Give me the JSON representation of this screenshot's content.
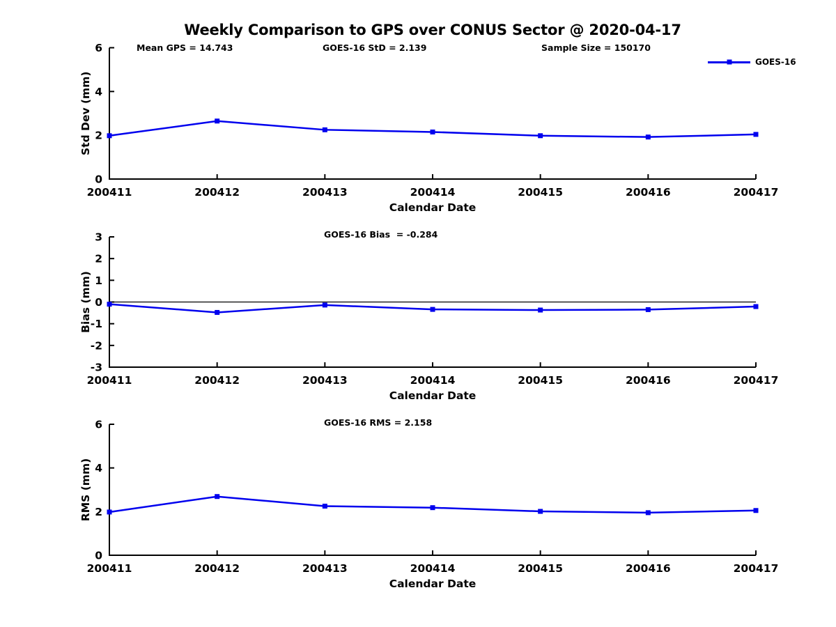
{
  "title": "Weekly Comparison to GPS over CONUS Sector @ 2020-04-17",
  "legend": {
    "label": "GOES-16"
  },
  "colors": {
    "line": "#0000EE",
    "text": "#000000",
    "background": "#FFFFFF"
  },
  "chart_data": [
    {
      "type": "line",
      "categories": [
        "200411",
        "200412",
        "200413",
        "200414",
        "200415",
        "200416",
        "200417"
      ],
      "series": [
        {
          "name": "GOES-16",
          "values": [
            1.98,
            2.65,
            2.25,
            2.15,
            1.98,
            1.92,
            2.04
          ]
        }
      ],
      "annotations": [
        "Mean GPS = 14.743",
        "GOES-16 StD = 2.139",
        "Sample Size = 150170"
      ],
      "xlabel": "Calendar Date",
      "ylabel": "Std Dev (mm)",
      "ylim": [
        0,
        6
      ],
      "yticks": [
        0,
        2,
        4,
        6
      ],
      "grid": false,
      "legend_position": "upper right",
      "zero_line": false
    },
    {
      "type": "line",
      "categories": [
        "200411",
        "200412",
        "200413",
        "200414",
        "200415",
        "200416",
        "200417"
      ],
      "series": [
        {
          "name": "GOES-16",
          "values": [
            -0.1,
            -0.48,
            -0.14,
            -0.34,
            -0.37,
            -0.35,
            -0.21
          ]
        }
      ],
      "annotations": [
        "GOES-16 Bias  = -0.284"
      ],
      "xlabel": "Calendar Date",
      "ylabel": "Bias (mm)",
      "ylim": [
        -3,
        3
      ],
      "yticks": [
        3,
        2,
        1,
        0,
        -1,
        -2,
        -3
      ],
      "grid": false,
      "legend_position": "none",
      "zero_line": true
    },
    {
      "type": "line",
      "categories": [
        "200411",
        "200412",
        "200413",
        "200414",
        "200415",
        "200416",
        "200417"
      ],
      "series": [
        {
          "name": "GOES-16",
          "values": [
            1.98,
            2.69,
            2.25,
            2.18,
            2.01,
            1.95,
            2.05
          ]
        }
      ],
      "annotations": [
        "GOES-16 RMS = 2.158"
      ],
      "xlabel": "Calendar Date",
      "ylabel": "RMS (mm)",
      "ylim": [
        0,
        6
      ],
      "yticks": [
        0,
        2,
        4,
        6
      ],
      "grid": false,
      "legend_position": "none",
      "zero_line": false
    }
  ]
}
